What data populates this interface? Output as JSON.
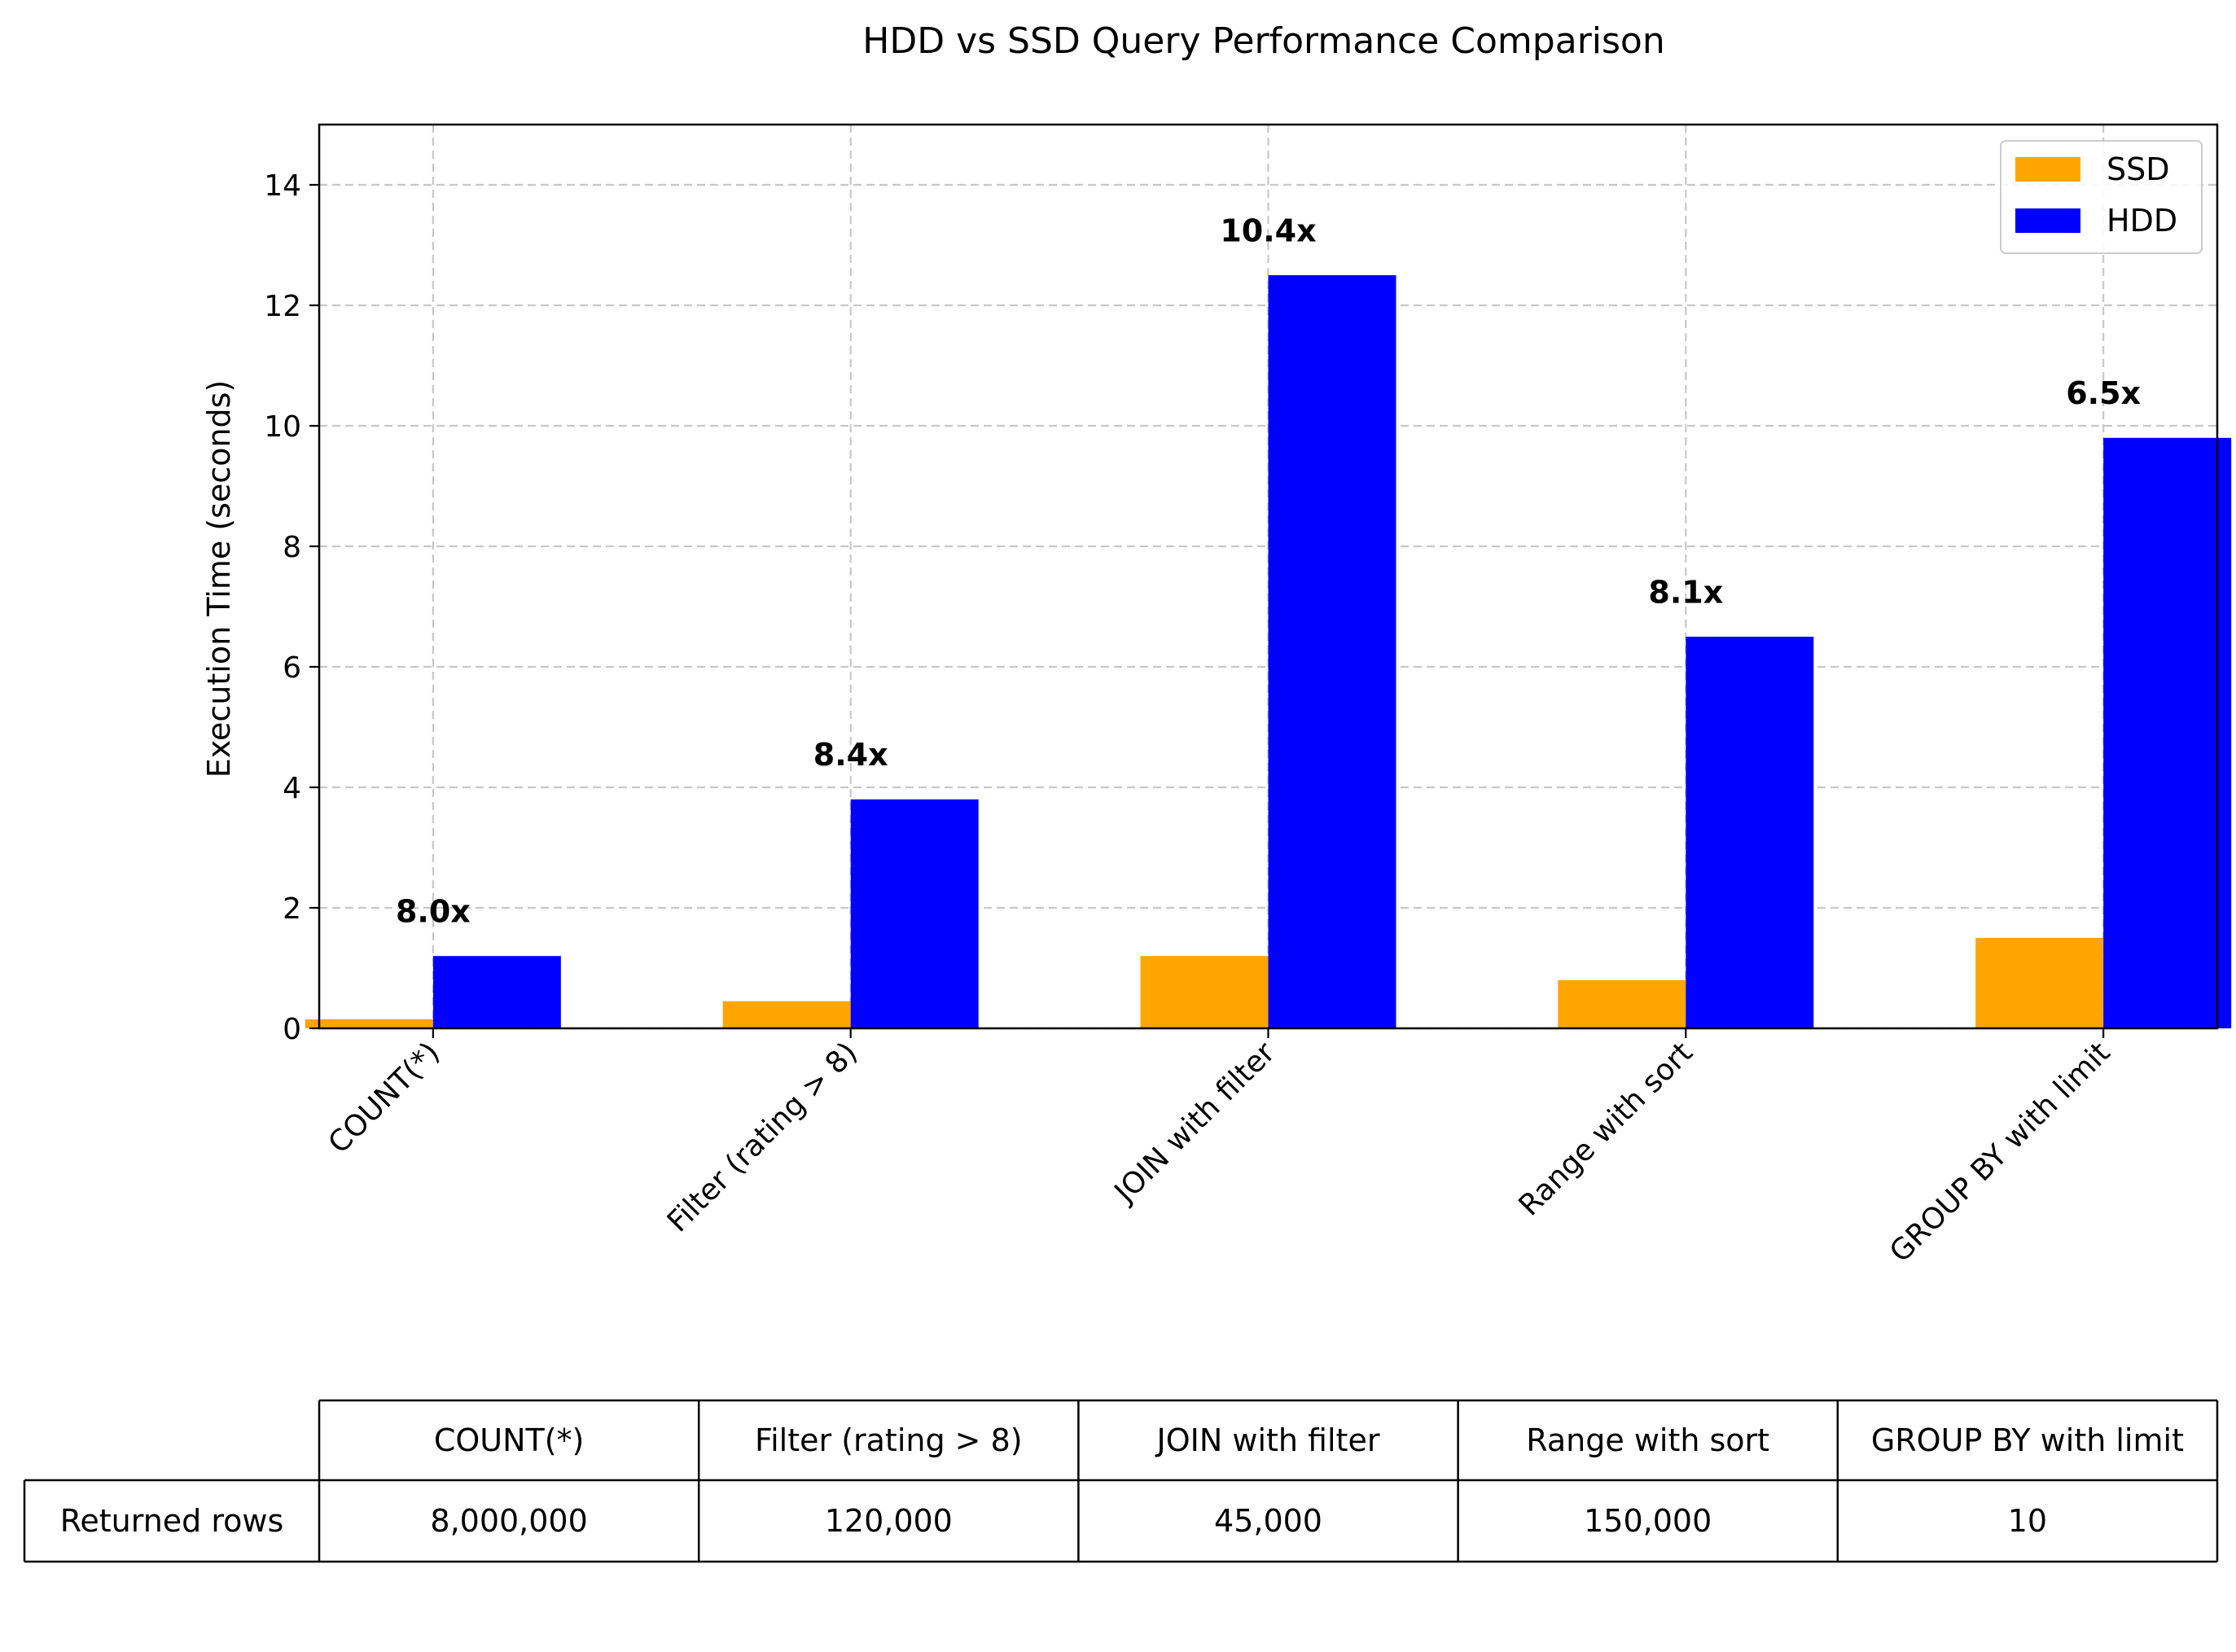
{
  "chart_data": {
    "type": "bar",
    "title": "HDD vs SSD Query Performance Comparison",
    "xlabel": "",
    "ylabel": "Execution Time (seconds)",
    "ylim": [
      0,
      15
    ],
    "yticks": [
      0,
      2,
      4,
      6,
      8,
      10,
      12,
      14
    ],
    "grid": true,
    "legend_position": "top-right",
    "categories": [
      "COUNT(*)",
      "Filter (rating > 8)",
      "JOIN with filter",
      "Range with sort",
      "GROUP BY with limit"
    ],
    "series": [
      {
        "name": "SSD",
        "color": "#ffa500",
        "values": [
          0.15,
          0.45,
          1.2,
          0.8,
          1.5
        ]
      },
      {
        "name": "HDD",
        "color": "#0000ff",
        "values": [
          1.2,
          3.8,
          12.5,
          6.5,
          9.8
        ]
      }
    ],
    "annotations": [
      "8.0x",
      "8.4x",
      "10.4x",
      "8.1x",
      "6.5x"
    ],
    "table": {
      "row_label": "Returned rows",
      "columns": [
        "COUNT(*)",
        "Filter (rating > 8)",
        "JOIN with filter",
        "Range with sort",
        "GROUP BY with limit"
      ],
      "values": [
        "8,000,000",
        "120,000",
        "45,000",
        "150,000",
        "10"
      ]
    }
  }
}
